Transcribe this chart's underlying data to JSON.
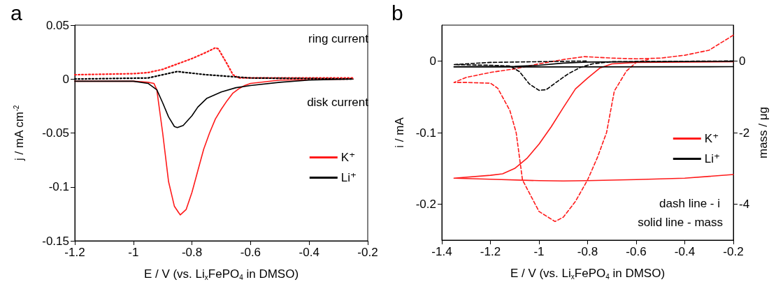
{
  "chart_data": [
    {
      "type": "line",
      "title": "a",
      "xlabel": "E / V (vs. Li$_{x}$FePO$_{4}$ in DMSO)",
      "ylabel": "j / mA cm$^{-2}$",
      "annotations": [
        "ring current",
        "disk current"
      ],
      "xlim": [
        -1.2,
        -0.2
      ],
      "xticks": [
        -1.2,
        -1,
        -0.8,
        -0.6,
        -0.4,
        -0.2
      ],
      "ylim": [
        -0.15,
        0.05
      ],
      "yticks": [
        -0.15,
        -0.1,
        -0.05,
        0,
        0.05
      ],
      "grid": false,
      "marker": "none",
      "legend": "right",
      "series": [
        {
          "name": "K⁺",
          "color": "#ff1a1a",
          "line_style": "solid",
          "x": [
            -1.2,
            -1.0,
            -0.95,
            -0.93,
            -0.92,
            -0.9,
            -0.88,
            -0.86,
            -0.84,
            -0.82,
            -0.8,
            -0.78,
            -0.76,
            -0.74,
            -0.72,
            -0.7,
            -0.68,
            -0.66,
            -0.64,
            -0.62,
            -0.6,
            -0.5,
            -0.25
          ],
          "values": [
            -0.002,
            -0.002,
            -0.003,
            -0.004,
            -0.01,
            -0.05,
            -0.095,
            -0.118,
            -0.126,
            -0.121,
            -0.105,
            -0.085,
            -0.065,
            -0.05,
            -0.037,
            -0.028,
            -0.02,
            -0.013,
            -0.009,
            -0.006,
            -0.004,
            -0.001,
            0
          ]
        },
        {
          "name": "Li⁺",
          "color": "#000000",
          "line_style": "solid",
          "x": [
            -1.2,
            -1.0,
            -0.95,
            -0.92,
            -0.9,
            -0.88,
            -0.86,
            -0.85,
            -0.83,
            -0.8,
            -0.78,
            -0.75,
            -0.7,
            -0.65,
            -0.6,
            -0.5,
            -0.4,
            -0.25
          ],
          "values": [
            -0.002,
            -0.002,
            -0.004,
            -0.01,
            -0.022,
            -0.035,
            -0.044,
            -0.045,
            -0.043,
            -0.034,
            -0.026,
            -0.018,
            -0.012,
            -0.008,
            -0.006,
            -0.003,
            -0.001,
            0
          ]
        },
        {
          "color": "#ff1a1a",
          "line_style": "dotted",
          "x": [
            -1.2,
            -1.0,
            -0.95,
            -0.9,
            -0.85,
            -0.8,
            -0.75,
            -0.72,
            -0.71,
            -0.68,
            -0.66,
            -0.64,
            -0.6,
            -0.25
          ],
          "values": [
            0.004,
            0.005,
            0.006,
            0.009,
            0.014,
            0.019,
            0.025,
            0.029,
            0.028,
            0.014,
            0.004,
            0.001,
            0.001,
            0.001
          ]
        },
        {
          "color": "#000000",
          "line_style": "dotted",
          "x": [
            -1.2,
            -0.95,
            -0.9,
            -0.85,
            -0.82,
            -0.75,
            -0.7,
            -0.65,
            -0.6,
            -0.25
          ],
          "values": [
            0,
            0.001,
            0.004,
            0.007,
            0.006,
            0.004,
            0.003,
            0.002,
            0.001,
            0
          ]
        }
      ]
    },
    {
      "type": "line",
      "title": "b",
      "xlabel": "E / V (vs. Li$_{x}$FePO$_{4}$ in DMSO)",
      "ylabel": "i / mA",
      "y2label": "mass / μg",
      "annotations": [
        "dash line - i",
        "solid line - mass"
      ],
      "xlim": [
        -1.4,
        -0.2
      ],
      "xticks": [
        -1.4,
        -1.2,
        -1,
        -0.8,
        -0.6,
        -0.4,
        -0.2
      ],
      "ylim": [
        -0.25,
        0.05
      ],
      "yticks": [
        -0.2,
        -0.1,
        0
      ],
      "y2lim": [
        -5,
        1
      ],
      "y2ticks": [
        -4,
        -2,
        0
      ],
      "grid": false,
      "marker": "none",
      "legend": "right",
      "series": [
        {
          "color": "#ff1a1a",
          "line_style": "dashed",
          "x": [
            -0.2,
            -0.3,
            -0.4,
            -0.5,
            -0.6,
            -0.7,
            -0.814,
            -0.9,
            -1.0,
            -1.1,
            -1.2,
            -1.3,
            -1.35,
            -1.3,
            -1.2,
            -1.17,
            -1.12,
            -1.094,
            -1.068,
            -1.0,
            -0.934,
            -0.9,
            -0.85,
            -0.8,
            -0.76,
            -0.722,
            -0.69,
            -0.64,
            -0.6,
            -0.55
          ],
          "values": [
            0.036,
            0.015,
            0.008,
            0.004,
            0.003,
            0.004,
            0.006,
            0.002,
            -0.004,
            -0.011,
            -0.016,
            -0.023,
            -0.03,
            -0.03,
            -0.031,
            -0.038,
            -0.069,
            -0.1,
            -0.166,
            -0.21,
            -0.224,
            -0.218,
            -0.196,
            -0.166,
            -0.135,
            -0.1,
            -0.042,
            -0.014,
            -0.002,
            0.002
          ]
        },
        {
          "color": "#000000",
          "line_style": "dashed",
          "x": [
            -0.2,
            -0.7,
            -0.78,
            -0.83,
            -0.88,
            -0.93,
            -0.97,
            -1.0,
            -1.04,
            -1.08,
            -1.12,
            -1.2,
            -1.35,
            -1.2,
            -1.0,
            -0.8
          ],
          "values": [
            0,
            -0.001,
            -0.004,
            -0.009,
            -0.018,
            -0.03,
            -0.04,
            -0.041,
            -0.032,
            -0.015,
            -0.007,
            -0.006,
            -0.005,
            -0.002,
            -0.001,
            0
          ]
        },
        {
          "name": "K⁺",
          "color": "#ff1a1a",
          "line_style": "solid",
          "axis": "y2",
          "x": [
            -1.35,
            -1.2,
            -1.15,
            -1.1,
            -1.05,
            -1.0,
            -0.95,
            -0.9,
            -0.85,
            -0.8,
            -0.75,
            -0.7,
            -0.6,
            -0.2,
            null,
            -0.2,
            -0.4,
            -0.6,
            -0.8,
            -0.9,
            -1.0,
            -1.2,
            -1.35
          ],
          "values": [
            -3.27,
            -3.19,
            -3.15,
            -3.0,
            -2.72,
            -2.32,
            -1.84,
            -1.3,
            -0.78,
            -0.48,
            -0.2,
            -0.08,
            -0.04,
            -0.02,
            null,
            -3.17,
            -3.27,
            -3.31,
            -3.34,
            -3.35,
            -3.34,
            -3.3,
            -3.27
          ]
        },
        {
          "name": "Li⁺",
          "color": "#000000",
          "line_style": "solid",
          "axis": "y2",
          "x": [
            -1.35,
            -1.1,
            -1.0,
            -0.9,
            -0.8,
            -0.2,
            null,
            -0.2,
            -1.35
          ],
          "values": [
            -0.16,
            -0.15,
            -0.12,
            -0.06,
            -0.03,
            -0.01,
            null,
            -0.16,
            -0.17
          ]
        }
      ]
    }
  ]
}
